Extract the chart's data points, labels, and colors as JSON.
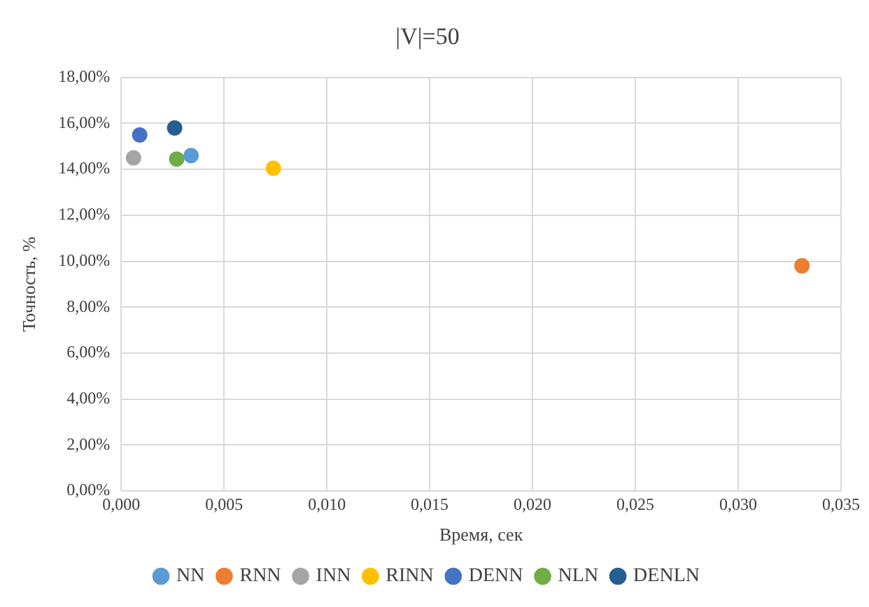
{
  "chart_data": {
    "type": "scatter",
    "title": "|V|=50",
    "xlabel": "Время, сек",
    "ylabel": "Точность, %",
    "series": [
      {
        "name": "NN",
        "color": "#5b9bd5",
        "x": [
          0.0034
        ],
        "values": [
          14.6
        ]
      },
      {
        "name": "RNN",
        "color": "#ed7d31",
        "x": [
          0.0331
        ],
        "values": [
          9.8
        ]
      },
      {
        "name": "INN",
        "color": "#a5a5a5",
        "x": [
          0.0006
        ],
        "values": [
          14.5
        ]
      },
      {
        "name": "RINN",
        "color": "#ffc000",
        "x": [
          0.0074
        ],
        "values": [
          14.05
        ]
      },
      {
        "name": "DENN",
        "color": "#4472c4",
        "x": [
          0.0009
        ],
        "values": [
          15.5
        ]
      },
      {
        "name": "NLN",
        "color": "#70ad47",
        "x": [
          0.0027
        ],
        "values": [
          14.45
        ]
      },
      {
        "name": "DENLN",
        "color": "#255e91",
        "x": [
          0.0026
        ],
        "values": [
          15.8
        ]
      }
    ],
    "xlim": [
      0,
      0.035
    ],
    "xticks": [
      {
        "value": 0,
        "label": "0,000"
      },
      {
        "value": 0.005,
        "label": "0,005"
      },
      {
        "value": 0.01,
        "label": "0,010"
      },
      {
        "value": 0.015,
        "label": "0,015"
      },
      {
        "value": 0.02,
        "label": "0,020"
      },
      {
        "value": 0.025,
        "label": "0,025"
      },
      {
        "value": 0.03,
        "label": "0,030"
      },
      {
        "value": 0.035,
        "label": "0,035"
      }
    ],
    "ylim": [
      0,
      18
    ],
    "yticks": [
      {
        "value": 0,
        "label": "0,00%"
      },
      {
        "value": 2,
        "label": "2,00%"
      },
      {
        "value": 4,
        "label": "4,00%"
      },
      {
        "value": 6,
        "label": "6,00%"
      },
      {
        "value": 8,
        "label": "8,00%"
      },
      {
        "value": 10,
        "label": "10,00%"
      },
      {
        "value": 12,
        "label": "12,00%"
      },
      {
        "value": 14,
        "label": "14,00%"
      },
      {
        "value": 16,
        "label": "16,00%"
      },
      {
        "value": 18,
        "label": "18,00%"
      }
    ],
    "grid": true,
    "legend": "bottom",
    "marker": "circle"
  }
}
